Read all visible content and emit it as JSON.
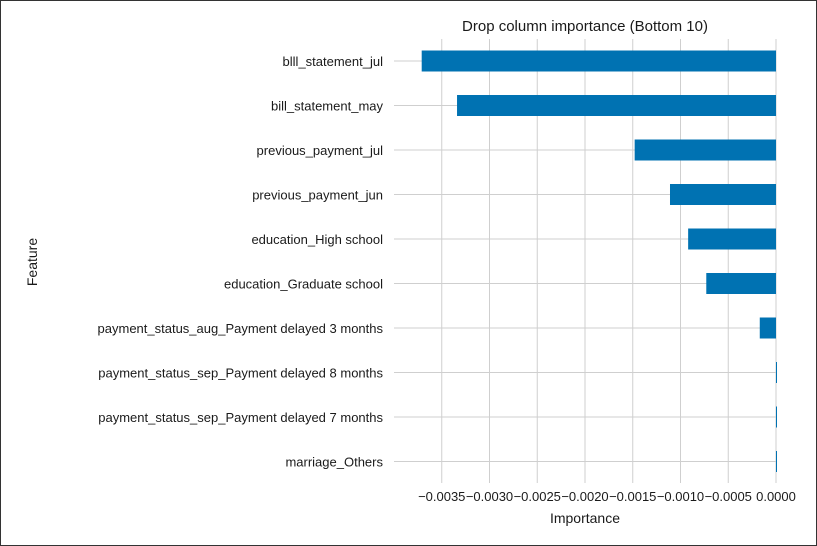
{
  "chart_data": {
    "type": "bar",
    "orientation": "horizontal",
    "title": "Drop column importance (Bottom 10)",
    "xlabel": "Importance",
    "ylabel": "Feature",
    "categories": [
      "blll_statement_jul",
      "bill_statement_may",
      "previous_payment_jul",
      "previous_payment_jun",
      "education_High school",
      "education_Graduate school",
      "payment_status_aug_Payment delayed 3 months",
      "payment_status_sep_Payment delayed 8 months",
      "payment_status_sep_Payment delayed 7 months",
      "marriage_Others"
    ],
    "values": [
      -0.00371,
      -0.00334,
      -0.00148,
      -0.00111,
      -0.00092,
      -0.00073,
      -0.00017,
      0.0,
      0.0,
      0.0
    ],
    "xlim": [
      -0.004,
      0.0
    ],
    "xticks": [
      -0.0035,
      -0.003,
      -0.0025,
      -0.002,
      -0.0015,
      -0.001,
      -0.0005,
      0.0
    ],
    "xtick_labels": [
      "−0.0035",
      "−0.0030",
      "−0.0025",
      "−0.0020",
      "−0.0015",
      "−0.0010",
      "−0.0005",
      "0.0000"
    ],
    "grid": true,
    "bar_color": "#0072b2",
    "grid_color": "#cfcfcf"
  }
}
